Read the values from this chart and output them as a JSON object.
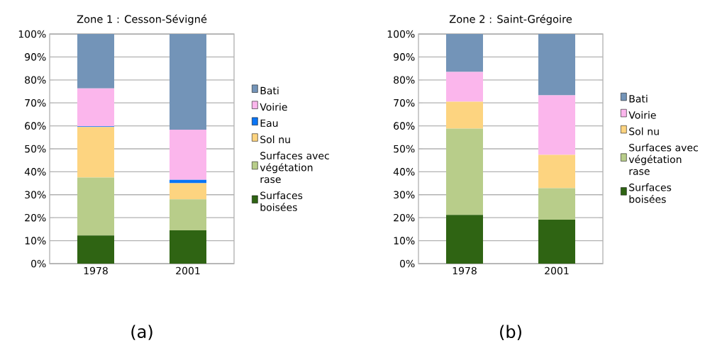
{
  "chart_data": [
    {
      "type": "bar",
      "stacked": true,
      "title": "Zone 1 : Cesson-Sévigné",
      "categories": [
        "1978",
        "2001"
      ],
      "series": [
        {
          "name": "Surfaces boisées",
          "color": "#2f6413",
          "values": [
            12.3,
            14.5
          ]
        },
        {
          "name": "Surfaces avec végétation rase",
          "color": "#b8cd8a",
          "values": [
            25.2,
            13.5
          ]
        },
        {
          "name": "Sol nu",
          "color": "#fdd480",
          "values": [
            22,
            7
          ]
        },
        {
          "name": "Eau",
          "color": "#0a75f5",
          "values": [
            0.3,
            1.5
          ]
        },
        {
          "name": "Voirie",
          "color": "#fbb6ec",
          "values": [
            16.5,
            21.8
          ]
        },
        {
          "name": "Bati",
          "color": "#7394b8",
          "values": [
            23.7,
            41.7
          ]
        }
      ],
      "ylim": [
        0,
        100
      ],
      "yticks": [
        {
          "value": 0,
          "label": "0%"
        },
        {
          "value": 10,
          "label": "10%"
        },
        {
          "value": 20,
          "label": "20%"
        },
        {
          "value": 30,
          "label": "30%"
        },
        {
          "value": 40,
          "label": "40%"
        },
        {
          "value": 50,
          "label": "50%"
        },
        {
          "value": 60,
          "label": "60%"
        },
        {
          "value": 70,
          "label": "70%"
        },
        {
          "value": 80,
          "label": "80%"
        },
        {
          "value": 90,
          "label": "90%"
        },
        {
          "value": 100,
          "label": "100%"
        }
      ],
      "grid": "y",
      "legend": "right",
      "annotations": [
        "(a)"
      ]
    },
    {
      "type": "bar",
      "stacked": true,
      "title": "Zone 2 : Saint-Grégoire",
      "categories": [
        "1978",
        "2001"
      ],
      "series": [
        {
          "name": "Surfaces boisées",
          "color": "#2f6413",
          "values": [
            21.2,
            19.1
          ]
        },
        {
          "name": "Surfaces avec végétation rase",
          "color": "#b8cd8a",
          "values": [
            37.6,
            13.8
          ]
        },
        {
          "name": "Sol nu",
          "color": "#fdd480",
          "values": [
            11.7,
            14.5
          ]
        },
        {
          "name": "Voirie",
          "color": "#fbb6ec",
          "values": [
            13,
            25.9
          ]
        },
        {
          "name": "Bati",
          "color": "#7394b8",
          "values": [
            16.5,
            26.7
          ]
        }
      ],
      "ylim": [
        0,
        100
      ],
      "yticks": [
        {
          "value": 0,
          "label": "0%"
        },
        {
          "value": 10,
          "label": "10%"
        },
        {
          "value": 20,
          "label": "20%"
        },
        {
          "value": 30,
          "label": "30%"
        },
        {
          "value": 40,
          "label": "40%"
        },
        {
          "value": 50,
          "label": "50%"
        },
        {
          "value": 60,
          "label": "60%"
        },
        {
          "value": 70,
          "label": "70%"
        },
        {
          "value": 80,
          "label": "80%"
        },
        {
          "value": 90,
          "label": "90%"
        },
        {
          "value": 100,
          "label": "100%"
        }
      ],
      "grid": "y",
      "legend": "right",
      "annotations": [
        "(b)"
      ]
    }
  ]
}
